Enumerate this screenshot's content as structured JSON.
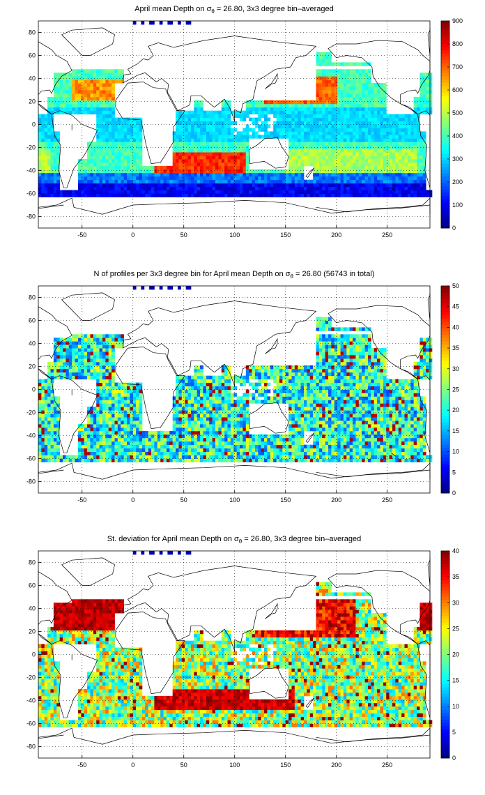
{
  "chart_data": [
    {
      "type": "heatmap",
      "title": "April mean Depth on σ_θ = 26.80, 3x3 degree bin–averaged",
      "title_parts": {
        "prefix": "April mean Depth on ",
        "symbol": "σ",
        "subscript": "θ",
        "suffix": " = 26.80, 3x3 degree bin–averaged"
      },
      "x_ticks": [
        "-50",
        "0",
        "50",
        "100",
        "150",
        "200",
        "250"
      ],
      "y_ticks": [
        "80",
        "60",
        "40",
        "20",
        "0",
        "-20",
        "-40",
        "-60",
        "-80"
      ],
      "xlim": [
        -93,
        292
      ],
      "ylim": [
        -90,
        90
      ],
      "colorbar": {
        "min": 0,
        "max": 900,
        "ticks": [
          "900",
          "800",
          "700",
          "600",
          "500",
          "400",
          "300",
          "200",
          "100",
          "0"
        ],
        "colormap": "jet"
      },
      "grid": true
    },
    {
      "type": "heatmap",
      "title": "N of profiles per 3x3 degree bin for April mean Depth on σ_θ = 26.80 (56743 in total)",
      "title_parts": {
        "prefix": "N of profiles per 3x3 degree bin for April mean Depth on ",
        "symbol": "σ",
        "subscript": "θ",
        "suffix": " = 26.80 (56743 in total)"
      },
      "x_ticks": [
        "-50",
        "0",
        "50",
        "100",
        "150",
        "200",
        "250"
      ],
      "y_ticks": [
        "80",
        "60",
        "40",
        "20",
        "0",
        "-20",
        "-40",
        "-60",
        "-80"
      ],
      "xlim": [
        -93,
        292
      ],
      "ylim": [
        -90,
        90
      ],
      "colorbar": {
        "min": 0,
        "max": 50,
        "ticks": [
          "50",
          "45",
          "40",
          "35",
          "30",
          "25",
          "20",
          "15",
          "10",
          "5",
          "0"
        ],
        "colormap": "jet"
      },
      "grid": true
    },
    {
      "type": "heatmap",
      "title": "St. deviation for April mean Depth on σ_θ = 26.80, 3x3 degree bin–averaged",
      "title_parts": {
        "prefix": "St. deviation for April mean Depth on ",
        "symbol": "σ",
        "subscript": "θ",
        "suffix": " = 26.80, 3x3 degree bin–averaged"
      },
      "x_ticks": [
        "-50",
        "0",
        "50",
        "100",
        "150",
        "200",
        "250"
      ],
      "y_ticks": [
        "80",
        "60",
        "40",
        "20",
        "0",
        "-20",
        "-40",
        "-60",
        "-80"
      ],
      "xlim": [
        -93,
        292
      ],
      "ylim": [
        -90,
        90
      ],
      "colorbar": {
        "min": 0,
        "max": 40,
        "ticks": [
          "40",
          "35",
          "30",
          "25",
          "20",
          "15",
          "10",
          "5",
          "0"
        ],
        "colormap": "jet"
      },
      "grid": true
    }
  ]
}
